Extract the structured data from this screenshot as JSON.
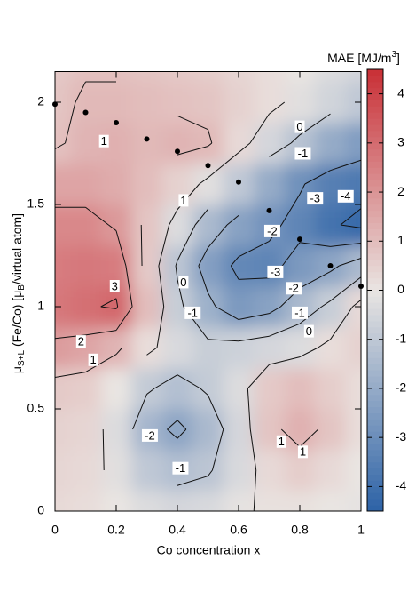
{
  "chart_data": {
    "type": "contour",
    "x_label": "Co concentration x",
    "y_label": [
      "μ",
      "S+L",
      " (Fe/Co) [μ",
      "B",
      "/virtual atom]"
    ],
    "colorbar_label": [
      "MAE [MJ/m",
      "3",
      "]"
    ],
    "xlim": [
      0,
      1
    ],
    "xticks": [
      0,
      0.2,
      0.4,
      0.6,
      0.8,
      1
    ],
    "ylim": [
      0,
      2.15
    ],
    "yticks": [
      0,
      0.5,
      1,
      1.5,
      2
    ],
    "zlim": [
      -4.5,
      4.5
    ],
    "zticks": [
      -4,
      -3,
      -2,
      -1,
      0,
      1,
      2,
      3,
      4
    ],
    "colormap": [
      "#2c62a6",
      "#e9e5e2",
      "#c92f36"
    ],
    "grid_x": [
      0,
      0.1,
      0.2,
      0.3,
      0.4,
      0.5,
      0.6,
      0.7,
      0.8,
      0.9,
      1
    ],
    "grid_y": [
      0,
      0.2,
      0.4,
      0.6,
      0.8,
      1.0,
      1.2,
      1.4,
      1.6,
      1.8,
      2.0,
      2.2
    ],
    "z": [
      [
        0.3,
        0.2,
        0.0,
        -0.3,
        -0.5,
        -0.4,
        -0.1,
        0.1,
        0.1,
        0.0,
        -0.1
      ],
      [
        0.4,
        0.3,
        -0.2,
        -1.0,
        -1.3,
        -1.1,
        -0.4,
        0.3,
        0.6,
        0.3,
        0.0
      ],
      [
        0.5,
        0.4,
        -0.3,
        -1.6,
        -2.2,
        -1.5,
        -0.5,
        0.8,
        1.3,
        0.8,
        0.2
      ],
      [
        0.7,
        0.6,
        0.0,
        -0.9,
        -1.3,
        -0.9,
        -0.3,
        0.7,
        1.0,
        0.6,
        0.2
      ],
      [
        1.8,
        1.6,
        1.2,
        0.2,
        -0.4,
        -0.8,
        -0.7,
        -0.5,
        -0.3,
        0.2,
        0.5
      ],
      [
        2.7,
        2.9,
        3.1,
        1.0,
        -0.8,
        -1.8,
        -2.6,
        -2.3,
        -1.5,
        -0.8,
        0.3
      ],
      [
        2.6,
        2.7,
        2.6,
        0.7,
        -1.1,
        -2.4,
        -3.2,
        -3.3,
        -2.6,
        -2.2,
        -1.5
      ],
      [
        2.3,
        2.3,
        1.9,
        0.8,
        -0.3,
        -1.5,
        -2.3,
        -2.8,
        -3.3,
        -3.9,
        -4.2
      ],
      [
        1.6,
        1.6,
        1.4,
        1.0,
        0.5,
        -0.2,
        -1.0,
        -2.0,
        -2.9,
        -3.5,
        -3.7
      ],
      [
        0.9,
        1.2,
        1.3,
        1.1,
        1.2,
        1.1,
        0.3,
        -0.5,
        -1.2,
        -2.0,
        -2.5
      ],
      [
        0.8,
        1.1,
        1.1,
        1.0,
        0.9,
        0.8,
        0.5,
        0.2,
        -0.2,
        -0.6,
        -1.0
      ],
      [
        0.7,
        0.9,
        0.9,
        0.8,
        0.7,
        0.6,
        0.4,
        0.2,
        0.0,
        -0.3,
        -0.5
      ]
    ],
    "contour_levels": [
      -4,
      -3,
      -2,
      -1,
      0,
      1,
      2,
      3
    ],
    "contour_labels": [
      {
        "text": "1",
        "x": 0.16,
        "y": 1.81
      },
      {
        "text": "1",
        "x": 0.42,
        "y": 1.52
      },
      {
        "text": "0",
        "x": 0.8,
        "y": 1.88
      },
      {
        "text": "-1",
        "x": 0.81,
        "y": 1.75
      },
      {
        "text": "-3",
        "x": 0.85,
        "y": 1.53
      },
      {
        "text": "-4",
        "x": 0.95,
        "y": 1.54
      },
      {
        "text": "-2",
        "x": 0.71,
        "y": 1.37
      },
      {
        "text": "-3",
        "x": 0.72,
        "y": 1.17
      },
      {
        "text": "-2",
        "x": 0.78,
        "y": 1.09
      },
      {
        "text": "-1",
        "x": 0.8,
        "y": 0.97
      },
      {
        "text": "0",
        "x": 0.83,
        "y": 0.88
      },
      {
        "text": "3",
        "x": 0.195,
        "y": 1.1
      },
      {
        "text": "0",
        "x": 0.42,
        "y": 1.12
      },
      {
        "text": "-1",
        "x": 0.45,
        "y": 0.97
      },
      {
        "text": "2",
        "x": 0.085,
        "y": 0.83
      },
      {
        "text": "1",
        "x": 0.125,
        "y": 0.74
      },
      {
        "text": "-2",
        "x": 0.31,
        "y": 0.37
      },
      {
        "text": "-1",
        "x": 0.41,
        "y": 0.21
      },
      {
        "text": "1",
        "x": 0.74,
        "y": 0.34
      },
      {
        "text": "1",
        "x": 0.81,
        "y": 0.29
      }
    ],
    "points": {
      "color": "#000000",
      "x": [
        0,
        0.1,
        0.2,
        0.3,
        0.4,
        0.5,
        0.6,
        0.7,
        0.8,
        0.9,
        1
      ],
      "y": [
        1.99,
        1.95,
        1.9,
        1.82,
        1.76,
        1.69,
        1.61,
        1.47,
        1.33,
        1.2,
        1.1
      ]
    }
  }
}
